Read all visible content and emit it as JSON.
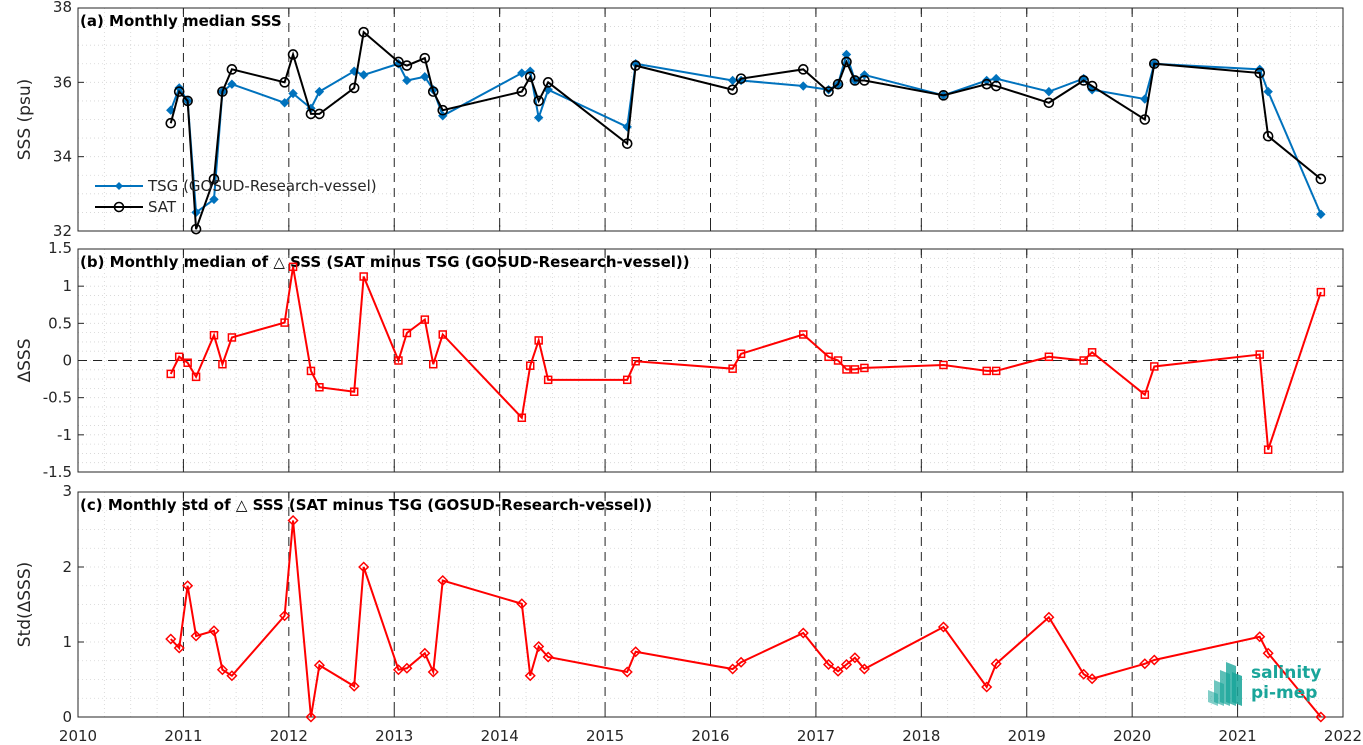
{
  "colors": {
    "tsg": "#0072BD",
    "sat": "#000000",
    "diff": "#FF0000",
    "logo": "#1aa59a"
  },
  "logo": {
    "line1": "salinity",
    "line2": "pi-mep"
  },
  "chart_data": [
    {
      "type": "line",
      "title": "(a) Monthly median SSS",
      "xlabel": "",
      "ylabel": "SSS (psu)",
      "xlim": [
        2010,
        2022
      ],
      "ylim": [
        32,
        38
      ],
      "xticks": [
        "2010",
        "2011",
        "2012",
        "2013",
        "2014",
        "2015",
        "2016",
        "2017",
        "2018",
        "2019",
        "2020",
        "2021",
        "2022"
      ],
      "yticks": [
        "32",
        "34",
        "36",
        "38"
      ],
      "grid": true,
      "legend": "lower-left",
      "series": [
        {
          "name": "TSG (GOSUD-Research-vessel)",
          "marker": "diamond-filled",
          "x": [
            2010.88,
            2010.96,
            2011.04,
            2011.12,
            2011.29,
            2011.37,
            2011.46,
            2011.96,
            2012.04,
            2012.21,
            2012.29,
            2012.62,
            2012.71,
            2013.04,
            2013.12,
            2013.29,
            2013.37,
            2013.46,
            2014.21,
            2014.29,
            2014.37,
            2014.46,
            2015.21,
            2015.29,
            2016.21,
            2016.29,
            2016.88,
            2017.12,
            2017.21,
            2017.29,
            2017.37,
            2017.46,
            2018.21,
            2018.62,
            2018.71,
            2019.21,
            2019.54,
            2019.62,
            2020.12,
            2020.21,
            2021.21,
            2021.29,
            2021.79
          ],
          "values": [
            35.25,
            35.85,
            35.5,
            32.5,
            32.85,
            35.75,
            35.95,
            35.45,
            35.7,
            35.3,
            35.75,
            36.3,
            36.2,
            36.5,
            36.05,
            36.15,
            35.8,
            35.1,
            36.25,
            36.3,
            35.05,
            35.8,
            34.8,
            36.5,
            36.05,
            36.05,
            35.9,
            35.8,
            35.95,
            36.75,
            36.05,
            36.2,
            35.65,
            36.05,
            36.1,
            35.75,
            36.1,
            35.8,
            35.55,
            36.5,
            36.35,
            35.75,
            32.45
          ]
        },
        {
          "name": "SAT",
          "marker": "circle-open",
          "x": [
            2010.88,
            2010.96,
            2011.04,
            2011.12,
            2011.29,
            2011.37,
            2011.46,
            2011.96,
            2012.04,
            2012.21,
            2012.29,
            2012.62,
            2012.71,
            2013.04,
            2013.12,
            2013.29,
            2013.37,
            2013.46,
            2014.21,
            2014.29,
            2014.37,
            2014.46,
            2015.21,
            2015.29,
            2016.21,
            2016.29,
            2016.88,
            2017.12,
            2017.21,
            2017.29,
            2017.37,
            2017.46,
            2018.21,
            2018.62,
            2018.71,
            2019.21,
            2019.54,
            2019.62,
            2020.12,
            2020.21,
            2021.21,
            2021.29,
            2021.79
          ],
          "values": [
            34.9,
            35.75,
            35.5,
            32.05,
            33.4,
            35.75,
            36.35,
            36.0,
            36.75,
            35.15,
            35.15,
            35.85,
            37.35,
            36.55,
            36.45,
            36.65,
            35.75,
            35.25,
            35.75,
            36.15,
            35.5,
            36.0,
            34.35,
            36.45,
            35.8,
            36.1,
            36.35,
            35.75,
            35.95,
            36.55,
            36.05,
            36.05,
            35.65,
            35.95,
            35.9,
            35.45,
            36.05,
            35.9,
            35.0,
            36.5,
            36.25,
            34.55,
            33.4
          ]
        }
      ]
    },
    {
      "type": "line",
      "title": "(b) Monthly median of △ SSS (SAT minus TSG (GOSUD-Research-vessel))",
      "xlabel": "",
      "ylabel": "ΔSSS",
      "xlim": [
        2010,
        2022
      ],
      "ylim": [
        -1.5,
        1.5
      ],
      "yticks": [
        "-1.5",
        "-1",
        "-0.5",
        "0",
        "0.5",
        "1",
        "1.5"
      ],
      "grid": true,
      "reference_line": 0,
      "series": [
        {
          "marker": "square-open",
          "x": [
            2010.88,
            2010.96,
            2011.04,
            2011.12,
            2011.29,
            2011.37,
            2011.46,
            2011.96,
            2012.04,
            2012.21,
            2012.29,
            2012.62,
            2012.71,
            2013.04,
            2013.12,
            2013.29,
            2013.37,
            2013.46,
            2014.21,
            2014.29,
            2014.37,
            2014.46,
            2015.21,
            2015.29,
            2016.21,
            2016.29,
            2016.88,
            2017.12,
            2017.21,
            2017.29,
            2017.37,
            2017.46,
            2018.21,
            2018.62,
            2018.71,
            2019.21,
            2019.54,
            2019.62,
            2020.12,
            2020.21,
            2021.21,
            2021.29,
            2021.79
          ],
          "values": [
            -0.18,
            0.05,
            -0.03,
            -0.22,
            0.34,
            -0.05,
            0.31,
            0.51,
            1.26,
            -0.14,
            -0.36,
            -0.42,
            1.13,
            0.0,
            0.37,
            0.55,
            -0.05,
            0.35,
            -0.77,
            -0.07,
            0.27,
            -0.26,
            -0.26,
            -0.01,
            -0.11,
            0.09,
            0.35,
            0.05,
            0.0,
            -0.12,
            -0.12,
            -0.1,
            -0.06,
            -0.14,
            -0.14,
            0.05,
            0.0,
            0.11,
            -0.46,
            -0.08,
            0.08,
            -1.2,
            0.92
          ]
        }
      ]
    },
    {
      "type": "line",
      "title": "(c) Monthly std of △ SSS (SAT minus TSG (GOSUD-Research-vessel))",
      "xlabel": "",
      "ylabel": "Std(ΔSSS)",
      "xlim": [
        2010,
        2022
      ],
      "ylim": [
        0,
        3
      ],
      "yticks": [
        "0",
        "1",
        "2",
        "3"
      ],
      "grid": true,
      "series": [
        {
          "marker": "diamond-open",
          "x": [
            2010.88,
            2010.96,
            2011.04,
            2011.12,
            2011.29,
            2011.37,
            2011.46,
            2011.96,
            2012.04,
            2012.21,
            2012.29,
            2012.62,
            2012.71,
            2013.04,
            2013.12,
            2013.29,
            2013.37,
            2013.46,
            2014.21,
            2014.29,
            2014.37,
            2014.46,
            2015.21,
            2015.29,
            2016.21,
            2016.29,
            2016.88,
            2017.12,
            2017.21,
            2017.29,
            2017.37,
            2017.46,
            2018.21,
            2018.62,
            2018.71,
            2019.21,
            2019.54,
            2019.62,
            2020.12,
            2020.21,
            2021.21,
            2021.29,
            2021.79
          ],
          "values": [
            1.04,
            0.92,
            1.75,
            1.08,
            1.15,
            0.63,
            0.55,
            1.35,
            2.62,
            0.0,
            0.69,
            0.41,
            2.0,
            0.63,
            0.65,
            0.85,
            0.6,
            1.82,
            1.51,
            0.55,
            0.94,
            0.8,
            0.6,
            0.87,
            0.64,
            0.73,
            1.12,
            0.7,
            0.61,
            0.7,
            0.79,
            0.64,
            1.2,
            0.4,
            0.71,
            1.33,
            0.57,
            0.51,
            0.71,
            0.76,
            1.07,
            0.85,
            0.0
          ]
        }
      ]
    }
  ]
}
